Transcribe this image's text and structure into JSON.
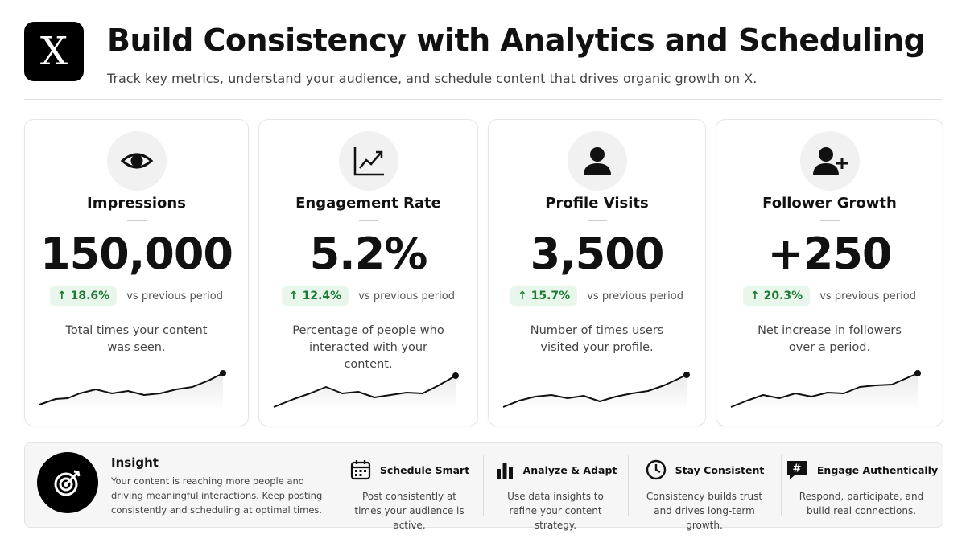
{
  "header": {
    "logo": "X",
    "title": "Build Consistency with Analytics and Scheduling",
    "subtitle": "Track key metrics, understand your audience, and schedule content that drives organic growth on X."
  },
  "cards": [
    {
      "title": "Impressions",
      "value": "150,000",
      "change": "↑ 18.6%",
      "change_note": "vs previous period",
      "description": "Total times your content was seen."
    },
    {
      "title": "Engagement Rate",
      "value": "5.2%",
      "change": "↑ 12.4%",
      "change_note": "vs previous period",
      "description": "Percentage of people who interacted with your content."
    },
    {
      "title": "Profile Visits",
      "value": "3,500",
      "change": "↑ 15.7%",
      "change_note": "vs previous period",
      "description": "Number of times users visited your profile."
    },
    {
      "title": "Follower Growth",
      "value": "+250",
      "change": "↑ 20.3%",
      "change_note": "vs previous period",
      "description": "Net increase in followers over a period."
    }
  ],
  "insight": {
    "title": "Insight",
    "text": "Your content is reaching more people and driving meaningful interactions. Keep posting consistently and scheduling at optimal times."
  },
  "tips": [
    {
      "title": "Schedule Smart",
      "text": "Post consistently at times your audience is active."
    },
    {
      "title": "Analyze & Adapt",
      "text": "Use data insights to refine your content strategy."
    },
    {
      "title": "Stay Consistent",
      "text": "Consistency builds trust and drives long-term growth."
    },
    {
      "title": "Engage Authentically",
      "text": "Respond, participate, and build real connections."
    }
  ]
}
